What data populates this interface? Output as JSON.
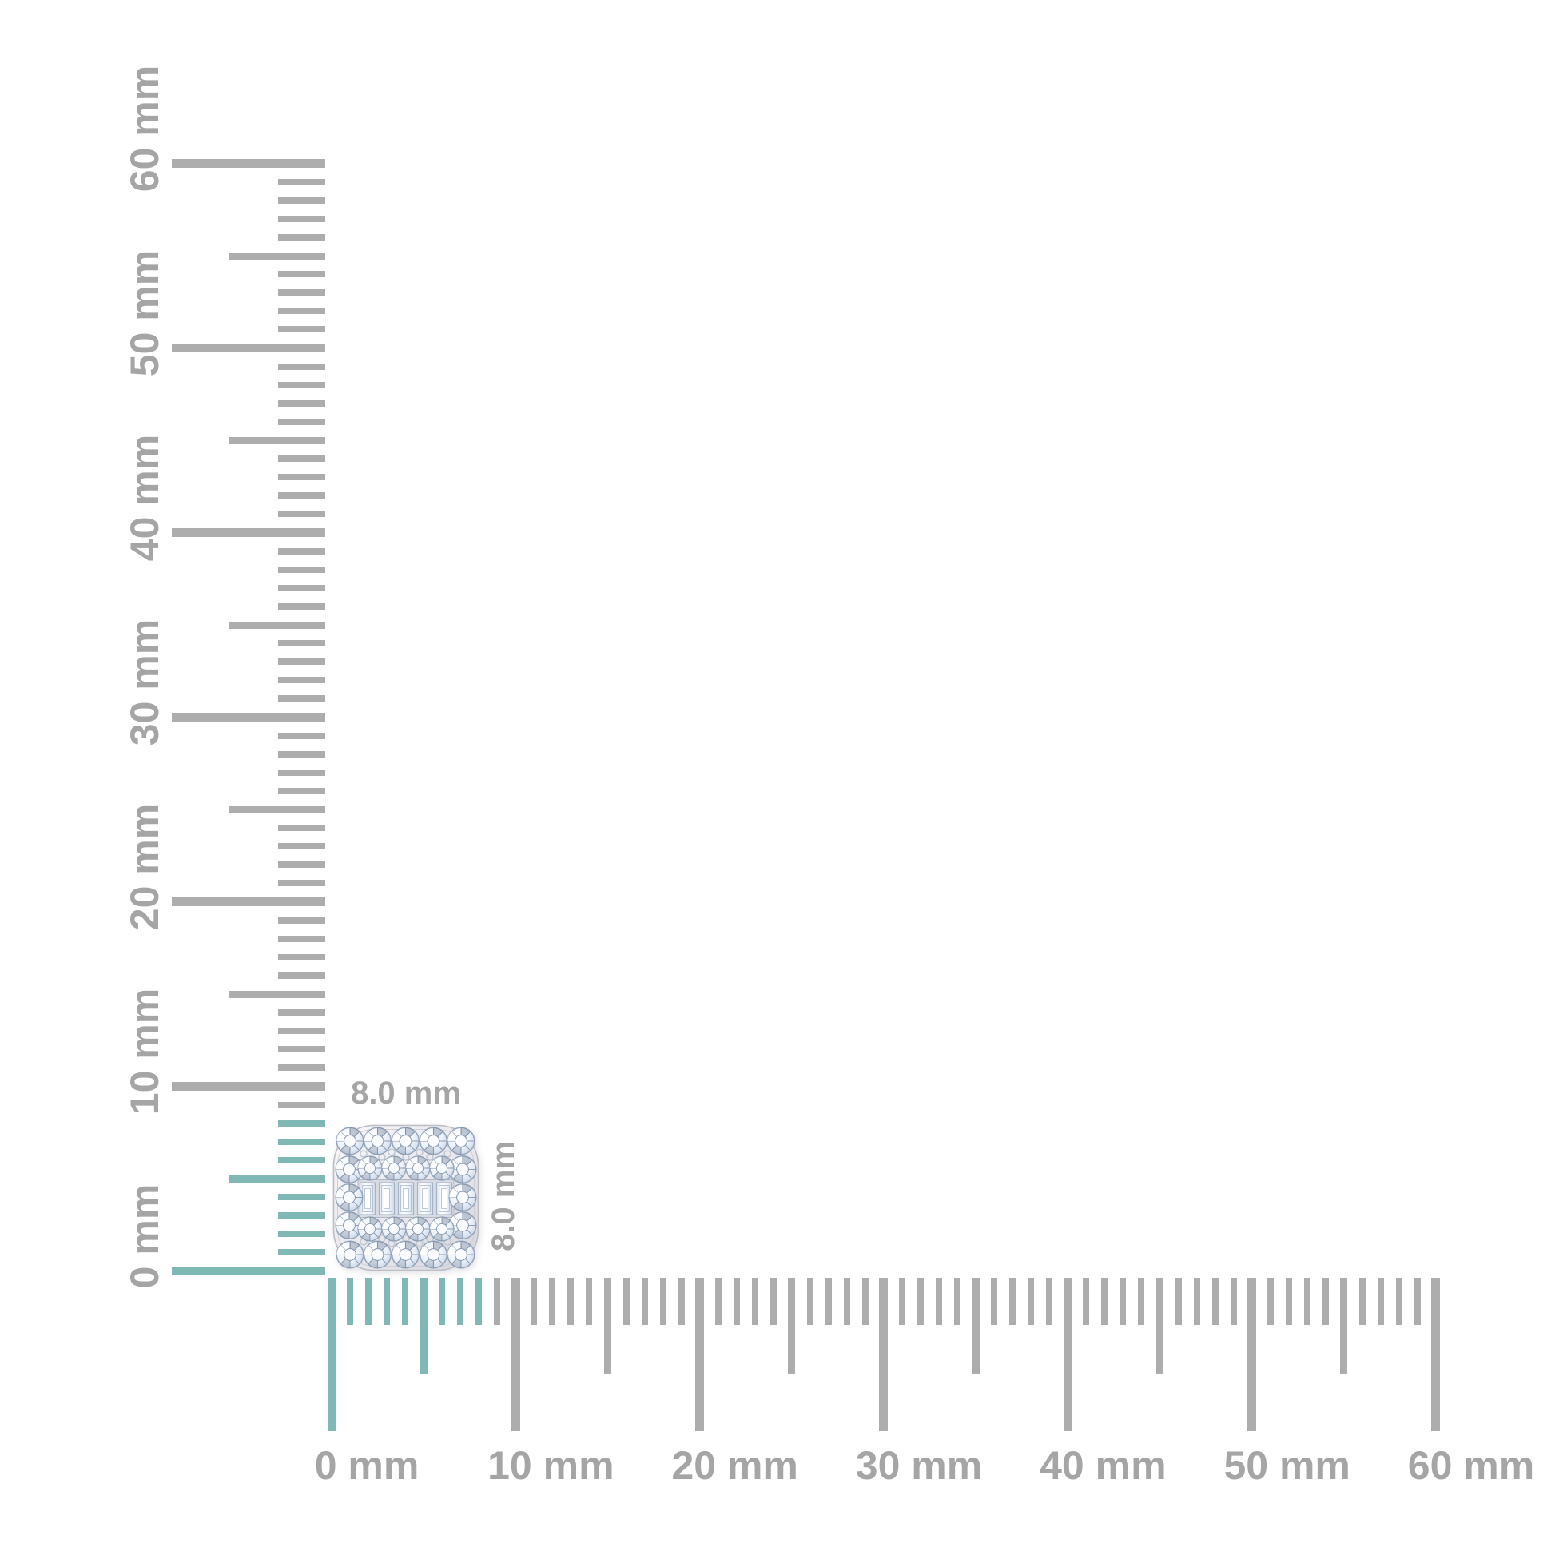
{
  "page": {
    "background": "#ffffff"
  },
  "rulers": {
    "unit": "mm",
    "max_mm": 60,
    "minor_step_mm": 1,
    "medium_step_mm": 5,
    "major_step_mm": 10,
    "highlight_max_mm": 8,
    "vertical_labels": [
      "0 mm",
      "10 mm",
      "20 mm",
      "30 mm",
      "40 mm",
      "50 mm",
      "60 mm"
    ],
    "horizontal_labels": [
      "0 mm",
      "10 mm",
      "20 mm",
      "30 mm",
      "40 mm",
      "50 mm",
      "60 mm"
    ],
    "colors": {
      "tick_gray": "#adadad",
      "tick_teal": "#7fb8b5",
      "label_gray": "#a5a5a5"
    }
  },
  "dimensions": {
    "width_label": "8.0 mm",
    "height_label": "8.0 mm"
  },
  "jewel": {
    "type": "cushion-shaped diamond cluster stud",
    "metal_color": "#e6e6eb",
    "halo_round_stones": 16,
    "inner_round_stones": 8,
    "baguette_stones": 5,
    "stone_tint": "#dce6f2"
  }
}
